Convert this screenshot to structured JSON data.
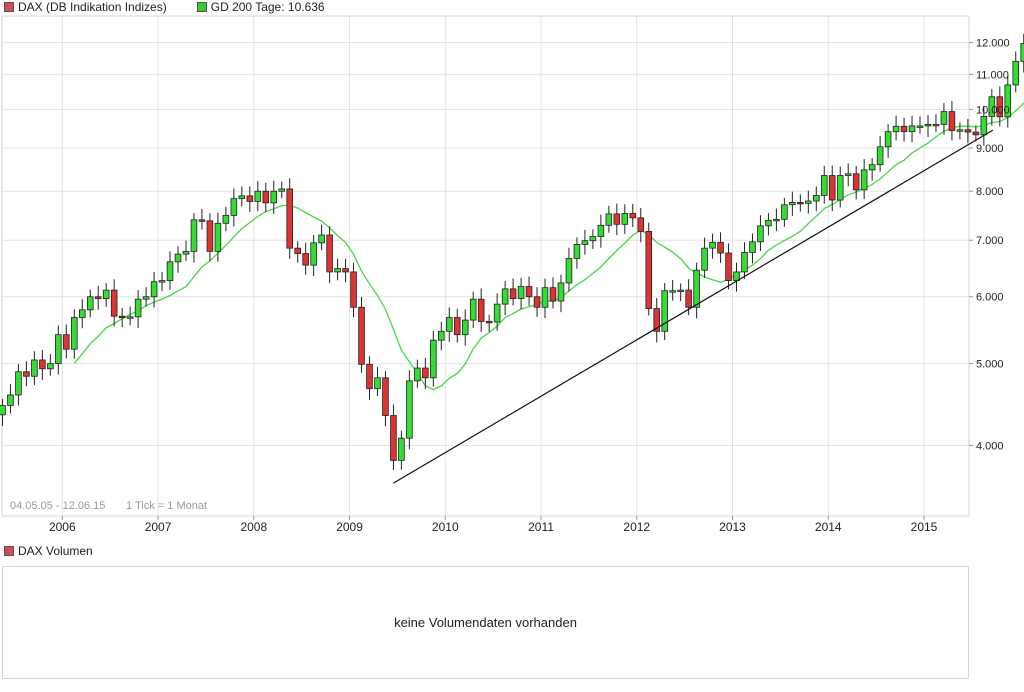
{
  "legend": {
    "series_label": "DAX (DB Indikation Indizes)",
    "series_color": "#d9494f",
    "ma_label": "GD 200 Tage: 10.636",
    "ma_color": "#33cc33"
  },
  "info": {
    "range": "04.05.05 - 12.06.15",
    "tick": "1 Tick = 1 Monat"
  },
  "volume": {
    "label": "DAX Volumen",
    "message": "keine Volumendaten vorhanden"
  },
  "colors": {
    "up": "#33dd33",
    "down": "#dd3333",
    "ma_line": "#44d944",
    "trend_line": "#111111",
    "grid": "#e3e3e3"
  },
  "chart_data": {
    "type": "candlestick",
    "scale": "log",
    "ylim": [
      3300,
      12900
    ],
    "yticks": [
      4000,
      5000,
      6000,
      7000,
      8000,
      9000,
      10000,
      11000,
      12000
    ],
    "ytick_labels": [
      "4.000",
      "5.000",
      "6.000",
      "7.000",
      "8.000",
      "9.000",
      "10.000",
      "11.000",
      "12.000"
    ],
    "xlim": [
      2005.37,
      2015.47
    ],
    "xticks": [
      2006,
      2007,
      2008,
      2009,
      2010,
      2011,
      2012,
      2013,
      2014,
      2015
    ],
    "xtick_labels": [
      "2006",
      "2007",
      "2008",
      "2009",
      "2010",
      "2011",
      "2012",
      "2013",
      "2014",
      "2015"
    ],
    "start": "2005-05",
    "closes": [
      4460,
      4590,
      4890,
      4830,
      5050,
      4930,
      5000,
      5410,
      5200,
      5670,
      5790,
      6000,
      5970,
      6110,
      5690,
      5680,
      5680,
      5960,
      6000,
      6250,
      6270,
      6600,
      6740,
      6790,
      7400,
      7380,
      6790,
      7330,
      7490,
      7840,
      7900,
      7780,
      8000,
      7750,
      8000,
      8050,
      6850,
      6750,
      6540,
      6950,
      7100,
      6420,
      6480,
      6420,
      5830,
      4990,
      4670,
      4810,
      4340,
      3840,
      4080,
      4770,
      4940,
      4810,
      5330,
      5460,
      5670,
      5410,
      5630,
      5960,
      5610,
      5600,
      5880,
      6130,
      5970,
      6170,
      6000,
      5830,
      6150,
      5930,
      6230,
      6660,
      6920,
      6990,
      7070,
      7290,
      7520,
      7310,
      7530,
      7440,
      7170,
      5810,
      5460,
      6100,
      6100,
      6110,
      5830,
      6450,
      6850,
      6960,
      6760,
      6270,
      6420,
      6770,
      6970,
      7280,
      7390,
      7410,
      7710,
      7760,
      7740,
      7790,
      7910,
      8350,
      7810,
      8350,
      8390,
      8030,
      8480,
      8600,
      9030,
      9410,
      9550,
      9410,
      9560,
      9560,
      9600,
      9600,
      9940,
      9440,
      9460,
      9400,
      9330,
      9810,
      10350,
      9800,
      10690,
      11400,
      11970,
      11450,
      11400,
      11330
    ]
  }
}
